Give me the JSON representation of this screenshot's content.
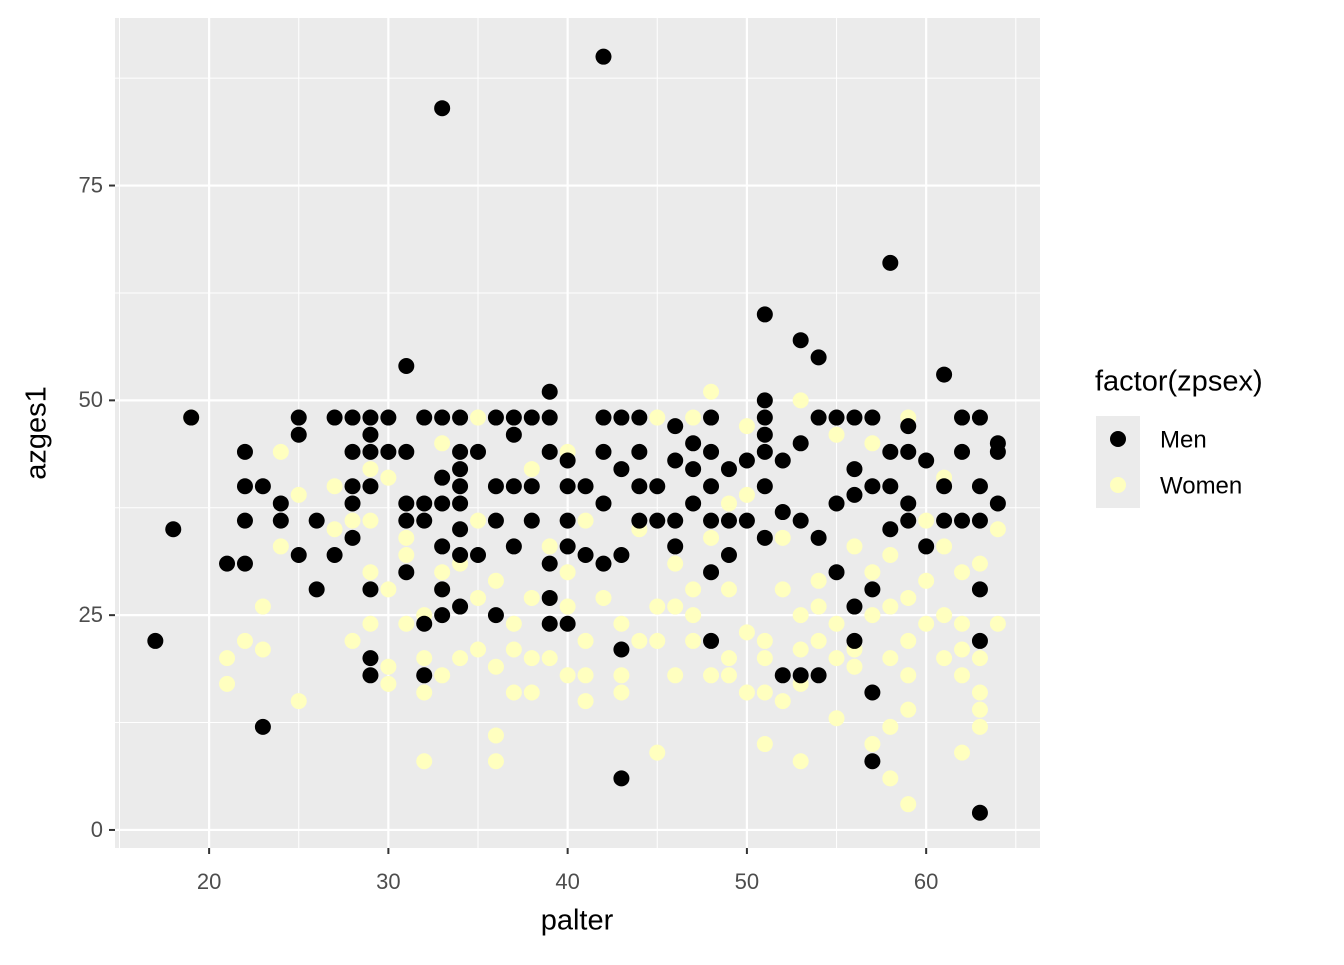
{
  "chart_data": {
    "type": "scatter",
    "x_label": "palter",
    "y_label": "azges1",
    "legend_title": "factor(zpsex)",
    "legend": "right",
    "grid": true,
    "xlim": [
      14.75,
      66.35
    ],
    "xticks": [
      20,
      30,
      40,
      50,
      60
    ],
    "ylim": [
      -2.1,
      94.5
    ],
    "yticks": [
      0,
      25,
      50,
      75
    ],
    "series": [
      {
        "name": "Men",
        "color": "#000000",
        "x": [
          17,
          18,
          19,
          21,
          22,
          22,
          22,
          22,
          23,
          23,
          24,
          24,
          25,
          25,
          25,
          26,
          26,
          27,
          27,
          28,
          28,
          28,
          28,
          28,
          29,
          29,
          29,
          29,
          29,
          29,
          29,
          30,
          30,
          31,
          31,
          31,
          31,
          31,
          32,
          32,
          32,
          32,
          32,
          33,
          33,
          33,
          33,
          33,
          33,
          33,
          34,
          34,
          34,
          34,
          34,
          34,
          34,
          34,
          35,
          35,
          36,
          36,
          36,
          36,
          37,
          37,
          37,
          37,
          38,
          38,
          38,
          39,
          39,
          39,
          39,
          39,
          39,
          40,
          40,
          40,
          40,
          40,
          41,
          41,
          42,
          42,
          42,
          42,
          42,
          43,
          43,
          43,
          43,
          43,
          44,
          44,
          44,
          44,
          45,
          45,
          46,
          46,
          46,
          46,
          47,
          47,
          47,
          48,
          48,
          48,
          48,
          48,
          48,
          49,
          49,
          49,
          50,
          50,
          51,
          51,
          51,
          51,
          51,
          51,
          51,
          52,
          52,
          52,
          53,
          53,
          53,
          53,
          54,
          54,
          54,
          54,
          55,
          55,
          55,
          56,
          56,
          56,
          56,
          56,
          57,
          57,
          57,
          57,
          57,
          58,
          58,
          58,
          58,
          59,
          59,
          59,
          59,
          60,
          60,
          61,
          61,
          61,
          62,
          62,
          62,
          63,
          63,
          63,
          63,
          63,
          63,
          64,
          64,
          64
        ],
        "values": [
          22,
          35,
          48,
          31,
          31,
          36,
          40,
          44,
          40,
          12,
          36,
          38,
          32,
          46,
          48,
          28,
          36,
          32,
          48,
          34,
          38,
          40,
          44,
          48,
          18,
          20,
          28,
          40,
          44,
          46,
          48,
          44,
          48,
          30,
          36,
          38,
          44,
          54,
          18,
          24,
          36,
          38,
          48,
          84,
          25,
          28,
          33,
          38,
          41,
          48,
          26,
          32,
          35,
          38,
          40,
          42,
          44,
          48,
          32,
          44,
          25,
          36,
          40,
          48,
          33,
          40,
          46,
          48,
          36,
          40,
          48,
          24,
          27,
          31,
          44,
          48,
          51,
          24,
          33,
          36,
          40,
          43,
          32,
          40,
          90,
          31,
          38,
          44,
          48,
          6,
          21,
          32,
          42,
          48,
          36,
          40,
          44,
          48,
          36,
          40,
          33,
          36,
          43,
          47,
          38,
          42,
          45,
          22,
          30,
          36,
          40,
          44,
          48,
          32,
          36,
          42,
          36,
          43,
          34,
          40,
          44,
          46,
          48,
          50,
          60,
          18,
          37,
          43,
          18,
          36,
          45,
          57,
          18,
          34,
          48,
          55,
          30,
          38,
          48,
          22,
          26,
          39,
          42,
          48,
          8,
          16,
          28,
          40,
          48,
          35,
          40,
          44,
          66,
          36,
          38,
          44,
          47,
          33,
          43,
          36,
          40,
          53,
          36,
          44,
          48,
          2,
          22,
          28,
          36,
          40,
          48,
          38,
          44,
          45
        ]
      },
      {
        "name": "Women",
        "color": "#FFFFBF",
        "x": [
          19,
          21,
          21,
          22,
          23,
          23,
          24,
          24,
          25,
          25,
          27,
          27,
          28,
          28,
          29,
          29,
          29,
          29,
          30,
          30,
          30,
          30,
          31,
          31,
          31,
          32,
          32,
          32,
          32,
          33,
          33,
          33,
          34,
          34,
          35,
          35,
          35,
          35,
          36,
          36,
          36,
          36,
          37,
          37,
          37,
          38,
          38,
          38,
          38,
          39,
          39,
          40,
          40,
          40,
          40,
          41,
          41,
          41,
          41,
          42,
          43,
          43,
          43,
          44,
          44,
          45,
          45,
          45,
          45,
          46,
          46,
          46,
          47,
          47,
          47,
          47,
          48,
          48,
          48,
          49,
          49,
          49,
          49,
          50,
          50,
          50,
          50,
          51,
          51,
          51,
          51,
          52,
          52,
          52,
          53,
          53,
          53,
          53,
          53,
          54,
          54,
          54,
          55,
          55,
          55,
          55,
          56,
          56,
          56,
          57,
          57,
          57,
          57,
          58,
          58,
          58,
          58,
          58,
          59,
          59,
          59,
          59,
          59,
          59,
          60,
          60,
          60,
          61,
          61,
          61,
          61,
          62,
          62,
          62,
          62,
          62,
          63,
          63,
          63,
          63,
          63,
          64,
          64
        ],
        "values": [
          48,
          17,
          20,
          22,
          21,
          26,
          33,
          44,
          15,
          39,
          35,
          40,
          22,
          36,
          24,
          30,
          36,
          42,
          17,
          19,
          28,
          41,
          24,
          32,
          34,
          8,
          16,
          20,
          25,
          18,
          30,
          45,
          20,
          31,
          21,
          27,
          36,
          48,
          8,
          11,
          19,
          29,
          16,
          21,
          24,
          16,
          20,
          27,
          42,
          20,
          33,
          18,
          26,
          30,
          44,
          15,
          18,
          22,
          36,
          27,
          16,
          18,
          24,
          22,
          35,
          9,
          22,
          26,
          48,
          18,
          26,
          31,
          22,
          25,
          28,
          48,
          18,
          34,
          51,
          18,
          20,
          28,
          38,
          16,
          23,
          39,
          47,
          10,
          16,
          20,
          22,
          15,
          28,
          34,
          8,
          17,
          21,
          25,
          50,
          22,
          26,
          29,
          13,
          20,
          24,
          46,
          19,
          21,
          33,
          10,
          25,
          30,
          45,
          6,
          12,
          20,
          26,
          32,
          3,
          14,
          18,
          22,
          27,
          48,
          24,
          29,
          36,
          20,
          25,
          33,
          41,
          9,
          18,
          21,
          24,
          30,
          12,
          14,
          16,
          20,
          31,
          24,
          35
        ]
      }
    ]
  }
}
